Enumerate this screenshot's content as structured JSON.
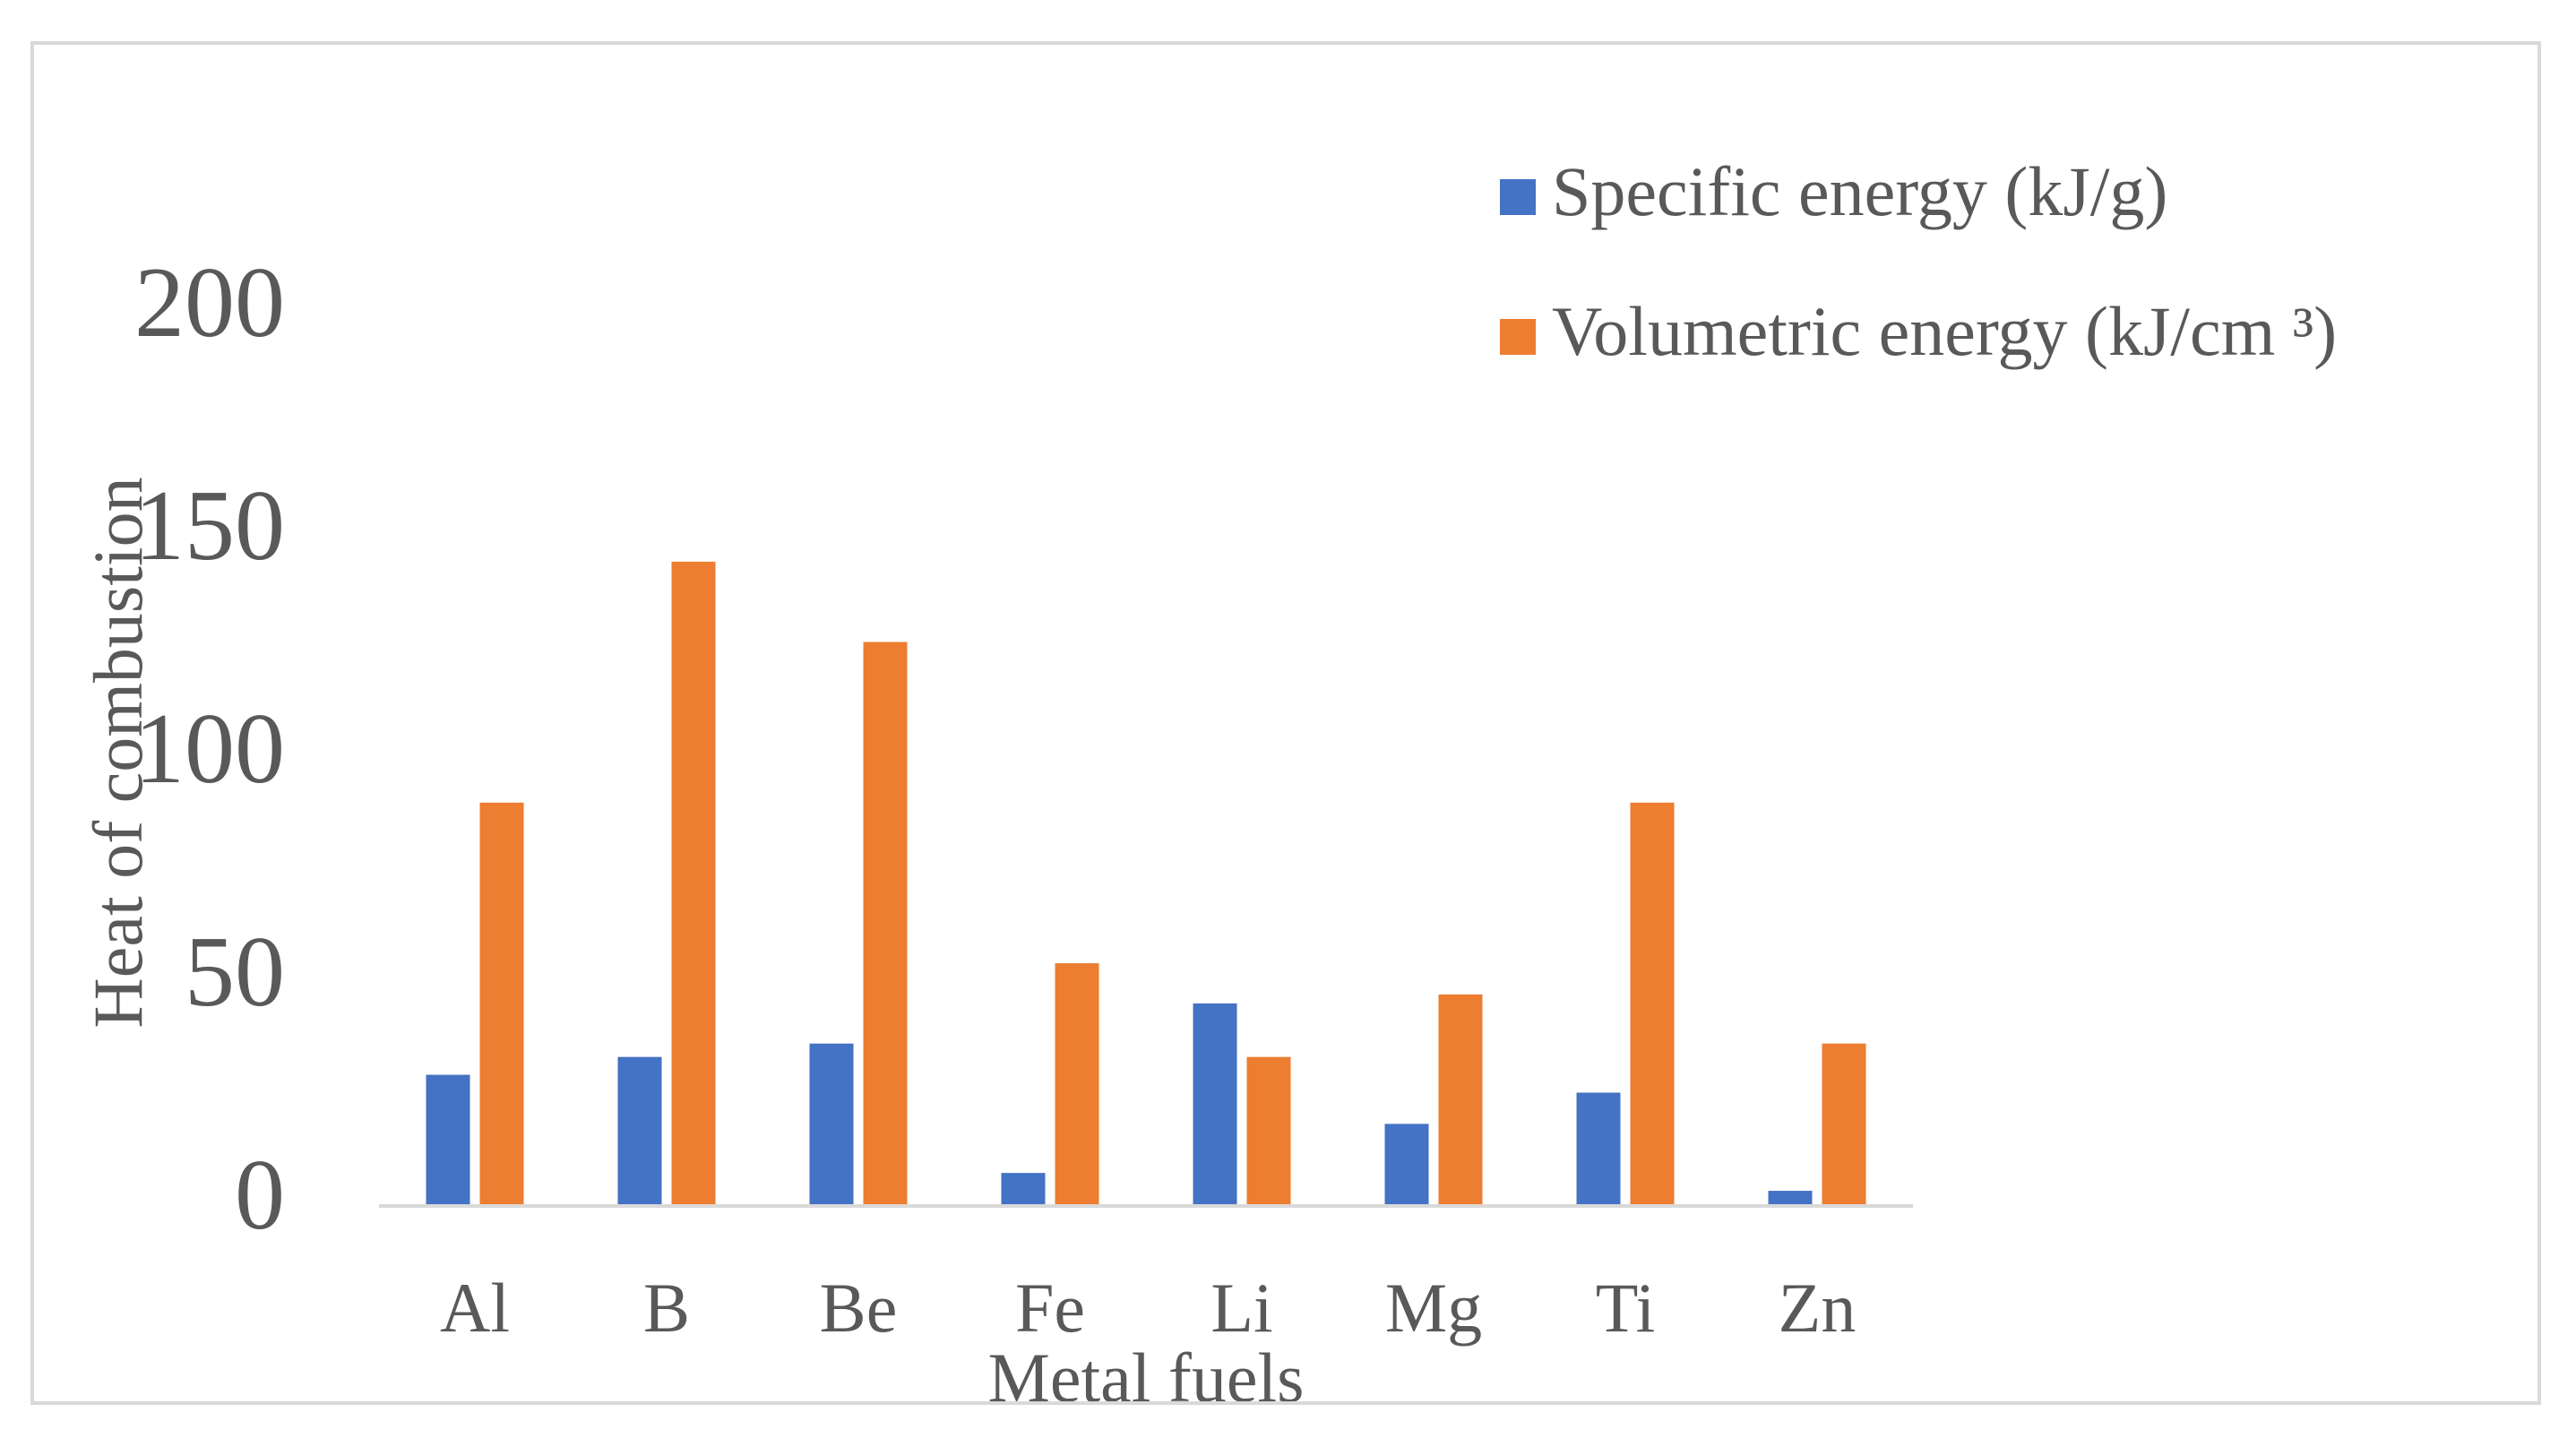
{
  "chart_data": {
    "type": "bar",
    "title": "",
    "xlabel": "Metal fuels",
    "ylabel": "Heat of combustion",
    "categories": [
      "Al",
      "B",
      "Be",
      "Fe",
      "Li",
      "Mg",
      "Ti",
      "Zn"
    ],
    "series": [
      {
        "name": "Specific energy (kJ/g)",
        "color": "#4472c4",
        "values": [
          29,
          33,
          36,
          7,
          45,
          18,
          25,
          3
        ]
      },
      {
        "name": "Volumetric energy (kJ/cm ³)",
        "color": "#ed7d31",
        "values": [
          90,
          144,
          126,
          54,
          33,
          47,
          90,
          36
        ]
      }
    ],
    "ylim": [
      0,
      200
    ],
    "yticks": [
      "0",
      "50",
      "100",
      "150",
      "200"
    ],
    "grid": false,
    "legend_position": "top-right",
    "axis_color": "#d9d9d9",
    "text_color": "#595959"
  }
}
